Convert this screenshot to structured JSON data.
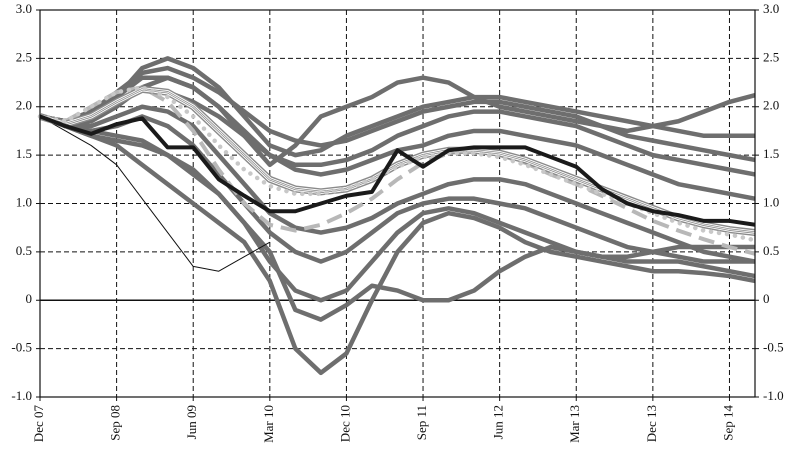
{
  "chart_data": {
    "type": "line",
    "categories": [
      "Dec 07",
      null,
      null,
      "Sep 08",
      null,
      null,
      "Jun 09",
      null,
      null,
      "Mar 10",
      null,
      null,
      "Dec 10",
      null,
      null,
      "Sep 11",
      null,
      null,
      "Jun 12",
      null,
      null,
      "Mar 13",
      null,
      null,
      "Dec 13",
      null,
      null,
      "Sep 14",
      null
    ],
    "ylim": [
      -1,
      3
    ],
    "yticks": [
      {
        "value": -1,
        "label": "-1.0"
      },
      -0.5,
      0,
      0.5,
      {
        "value": 1,
        "label": "1.0"
      },
      1.5,
      {
        "value": 2,
        "label": "2.0"
      },
      2.5,
      {
        "value": 3,
        "label": "3.0"
      }
    ],
    "grid": true,
    "series": [
      {
        "color": "#6e6e6e",
        "style": "gray",
        "values": [
          1.9,
          1.8,
          1.7,
          1.6,
          1.4,
          1.2,
          1.0,
          0.8,
          0.6,
          0.2,
          -0.5,
          -0.75,
          -0.55,
          0.0,
          0.5,
          0.8,
          0.9,
          0.85,
          0.75,
          0.6,
          0.5,
          0.45,
          0.4,
          0.35,
          0.3,
          0.3,
          0.28,
          0.25,
          0.2
        ]
      },
      {
        "color": "#6e6e6e",
        "style": "gray",
        "values": [
          1.9,
          1.85,
          1.9,
          2.1,
          2.4,
          2.5,
          2.4,
          2.2,
          1.9,
          1.6,
          1.5,
          1.55,
          1.7,
          1.8,
          1.9,
          2.0,
          2.05,
          2.1,
          2.1,
          2.05,
          2.0,
          1.95,
          1.9,
          1.85,
          1.8,
          1.75,
          1.7,
          1.7,
          1.7
        ]
      },
      {
        "color": "#6e6e6e",
        "style": "gray",
        "values": [
          1.9,
          1.8,
          1.85,
          2.0,
          2.2,
          2.3,
          2.2,
          2.0,
          1.7,
          1.4,
          1.6,
          1.9,
          2.0,
          2.1,
          2.25,
          2.3,
          2.25,
          2.1,
          2.0,
          1.95,
          1.9,
          1.85,
          1.8,
          1.75,
          1.8,
          1.85,
          1.95,
          2.05,
          2.12
        ]
      },
      {
        "color": "#6e6e6e",
        "style": "gray",
        "values": [
          1.9,
          1.8,
          1.75,
          1.7,
          1.65,
          1.5,
          1.3,
          1.1,
          0.8,
          0.5,
          -0.1,
          -0.2,
          -0.05,
          0.15,
          0.1,
          0.0,
          0.0,
          0.1,
          0.3,
          0.45,
          0.55,
          0.5,
          0.45,
          0.45,
          0.5,
          0.55,
          0.55,
          0.55,
          0.55
        ]
      },
      {
        "color": "#6e6e6e",
        "style": "gray",
        "values": [
          1.9,
          1.85,
          1.95,
          2.1,
          2.3,
          2.3,
          2.2,
          2.0,
          1.75,
          1.5,
          1.4,
          1.4,
          1.45,
          1.55,
          1.7,
          1.8,
          1.9,
          1.95,
          1.95,
          1.9,
          1.85,
          1.8,
          1.7,
          1.6,
          1.5,
          1.45,
          1.4,
          1.35,
          1.3
        ]
      },
      {
        "color": "#6e6e6e",
        "style": "gray",
        "values": [
          1.9,
          1.8,
          1.75,
          1.8,
          1.9,
          1.8,
          1.6,
          1.3,
          1.0,
          0.7,
          0.5,
          0.4,
          0.5,
          0.7,
          0.9,
          1.0,
          1.05,
          1.05,
          1.0,
          0.95,
          0.85,
          0.75,
          0.65,
          0.55,
          0.5,
          0.45,
          0.4,
          0.4,
          0.4
        ]
      },
      {
        "color": "#6e6e6e",
        "style": "gray",
        "values": [
          1.9,
          1.85,
          1.9,
          2.05,
          2.2,
          2.15,
          2.05,
          1.9,
          1.7,
          1.5,
          1.35,
          1.3,
          1.35,
          1.45,
          1.55,
          1.6,
          1.7,
          1.75,
          1.75,
          1.7,
          1.65,
          1.6,
          1.5,
          1.4,
          1.3,
          1.2,
          1.15,
          1.1,
          1.05
        ]
      },
      {
        "color": "#6e6e6e",
        "style": "gray",
        "values": [
          1.9,
          1.8,
          1.8,
          1.9,
          2.0,
          1.95,
          1.8,
          1.5,
          1.2,
          0.9,
          0.75,
          0.7,
          0.75,
          0.85,
          1.0,
          1.1,
          1.2,
          1.25,
          1.25,
          1.2,
          1.1,
          1.0,
          0.9,
          0.8,
          0.7,
          0.6,
          0.5,
          0.45,
          0.4
        ]
      },
      {
        "color": "#6e6e6e",
        "style": "gray",
        "values": [
          1.9,
          1.8,
          1.7,
          1.65,
          1.6,
          1.5,
          1.35,
          1.1,
          0.8,
          0.4,
          0.1,
          0.0,
          0.1,
          0.4,
          0.7,
          0.9,
          0.95,
          0.9,
          0.8,
          0.7,
          0.6,
          0.5,
          0.45,
          0.4,
          0.4,
          0.4,
          0.35,
          0.3,
          0.25
        ]
      },
      {
        "color": "#6e6e6e",
        "style": "gray",
        "values": [
          1.9,
          1.85,
          1.95,
          2.15,
          2.35,
          2.4,
          2.3,
          2.15,
          1.95,
          1.75,
          1.65,
          1.6,
          1.65,
          1.75,
          1.85,
          1.95,
          2.0,
          2.05,
          2.05,
          2.0,
          1.95,
          1.9,
          1.8,
          1.7,
          1.65,
          1.6,
          1.55,
          1.5,
          1.45
        ]
      },
      {
        "color": "#111111",
        "style": "thin",
        "values": [
          1.9,
          1.75,
          1.6,
          1.4,
          1.05,
          0.7,
          0.35,
          0.3,
          0.45,
          0.6,
          null,
          null,
          null,
          null,
          null,
          null,
          null,
          null,
          null,
          null,
          null,
          null,
          null,
          null,
          null,
          null,
          null,
          null,
          null
        ]
      },
      {
        "color": "#b8b8b8",
        "style": "dashed",
        "values": [
          1.9,
          1.85,
          2.0,
          2.15,
          2.2,
          2.05,
          1.75,
          1.35,
          1.0,
          0.78,
          0.72,
          0.78,
          0.9,
          1.05,
          1.25,
          1.42,
          1.52,
          1.55,
          1.5,
          1.42,
          1.3,
          1.2,
          1.08,
          0.95,
          0.82,
          0.72,
          0.63,
          0.55,
          0.48
        ]
      },
      {
        "color": "#8a8a8a",
        "style": "double",
        "values": [
          1.9,
          1.82,
          1.9,
          2.05,
          2.18,
          2.15,
          2.0,
          1.75,
          1.5,
          1.25,
          1.15,
          1.12,
          1.15,
          1.25,
          1.4,
          1.5,
          1.55,
          1.55,
          1.52,
          1.45,
          1.35,
          1.25,
          1.15,
          1.05,
          0.95,
          0.85,
          0.78,
          0.73,
          0.7
        ]
      },
      {
        "color": "#c8c8c8",
        "style": "dotted",
        "values": [
          1.9,
          1.85,
          2.0,
          2.15,
          2.2,
          2.1,
          1.9,
          1.6,
          1.35,
          1.18,
          1.1,
          1.1,
          1.15,
          1.25,
          1.38,
          1.48,
          1.52,
          1.52,
          1.48,
          1.4,
          1.3,
          1.2,
          1.1,
          1.0,
          0.9,
          0.8,
          0.72,
          0.68,
          0.62
        ]
      },
      {
        "color": "#1a1a1a",
        "style": "thick",
        "values": [
          1.9,
          1.8,
          1.72,
          1.82,
          1.88,
          1.58,
          1.58,
          1.25,
          1.08,
          0.92,
          0.92,
          1.0,
          1.08,
          1.12,
          1.55,
          1.38,
          1.55,
          1.58,
          1.58,
          1.58,
          1.48,
          1.38,
          1.15,
          1.0,
          0.92,
          0.88,
          0.82,
          0.82,
          0.78
        ]
      }
    ]
  }
}
